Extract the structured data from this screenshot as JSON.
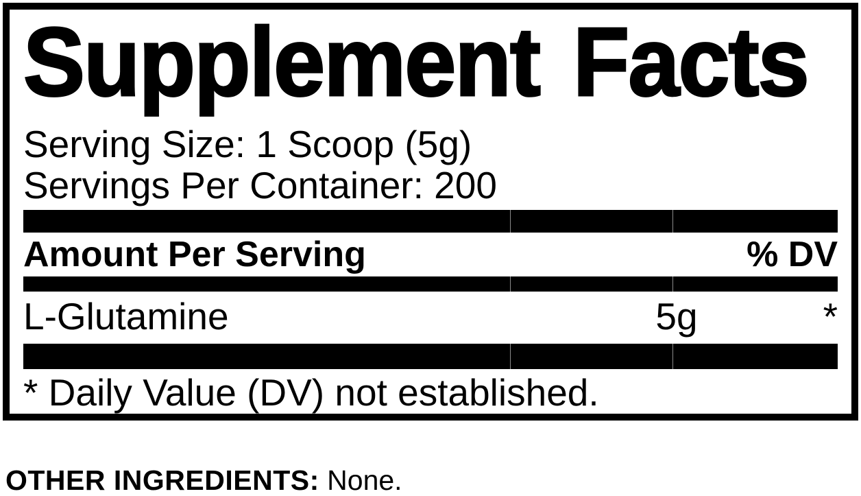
{
  "panel": {
    "title": "Supplement Facts",
    "serving_size": "Serving Size: 1 Scoop (5g)",
    "servings_per_container": "Servings Per Container: 200",
    "header": {
      "amount_label": "Amount Per Serving",
      "dv_label": "% DV"
    },
    "rows": [
      {
        "name": "L-Glutamine",
        "amount": "5g",
        "dv": "*"
      }
    ],
    "footnote": "* Daily Value (DV) not established."
  },
  "other_ingredients": {
    "label": "OTHER INGREDIENTS:",
    "value": "None."
  },
  "colors": {
    "ink": "#000000",
    "background": "#ffffff",
    "bar": "#000000",
    "bar_separator": "#8a8a8a"
  }
}
